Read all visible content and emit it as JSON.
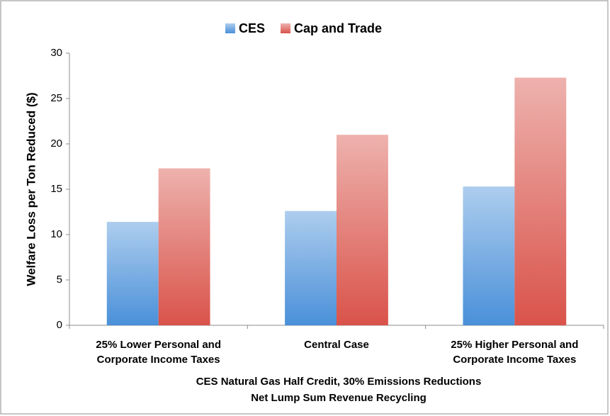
{
  "chart_data": {
    "type": "bar",
    "y_label": "Welfare Loss per Ton Reduced ($)",
    "x_label": [
      "CES Natural Gas Half Credit, 30% Emissions Reductions",
      "Net Lump Sum Revenue Recycling"
    ],
    "categories": [
      "25% Lower Personal and Corporate Income Taxes",
      "Central Case",
      "25% Higher Personal and Corporate Income Taxes"
    ],
    "series": [
      {
        "name": "CES",
        "color": "#4a90d9",
        "values": [
          11.4,
          12.6,
          15.3
        ]
      },
      {
        "name": "Cap and Trade",
        "color": "#d9534a",
        "values": [
          17.3,
          21.0,
          27.3
        ]
      }
    ],
    "ylim": [
      0,
      30
    ],
    "yticks": [
      0,
      5,
      10,
      15,
      20,
      25,
      30
    ],
    "grid": false,
    "legend": "top"
  }
}
